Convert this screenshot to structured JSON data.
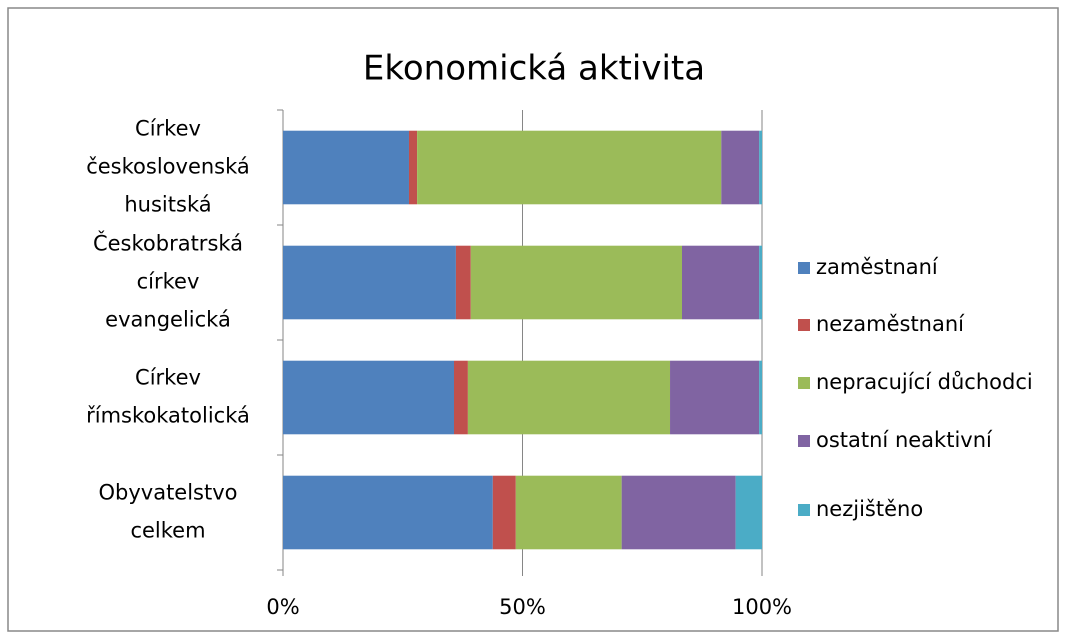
{
  "chart_data": {
    "type": "stacked_bar_horizontal",
    "title": "Ekonomická aktivita",
    "categories": [
      [
        "Církev",
        "československá",
        "husitská"
      ],
      [
        "Českobratrská",
        "církev",
        "evangelická"
      ],
      [
        "Církev",
        "římskokatolická"
      ],
      [
        "Obyvatelstvo",
        "celkem"
      ]
    ],
    "series": [
      {
        "name": "zaměstnaní",
        "color": "#4f81bd",
        "values": [
          26.3,
          36.1,
          35.7,
          43.8
        ]
      },
      {
        "name": "nezaměstnaní",
        "color": "#c0504d",
        "values": [
          1.7,
          3.1,
          2.9,
          4.8
        ]
      },
      {
        "name": "nepracující důchodci",
        "color": "#9bbb59",
        "values": [
          63.5,
          44.1,
          42.2,
          22.1
        ]
      },
      {
        "name": "ostatní neaktivní",
        "color": "#8064a2",
        "values": [
          7.9,
          16.1,
          18.6,
          23.8
        ]
      },
      {
        "name": "nezjištěno",
        "color": "#4bacc6",
        "values": [
          0.6,
          0.6,
          0.6,
          5.5
        ]
      }
    ],
    "xlim": [
      0,
      100
    ],
    "xticks": [
      {
        "value": 0,
        "label": "0%"
      },
      {
        "value": 50,
        "label": "50%"
      },
      {
        "value": 100,
        "label": "100%"
      }
    ],
    "grid": true,
    "legend": "right"
  }
}
